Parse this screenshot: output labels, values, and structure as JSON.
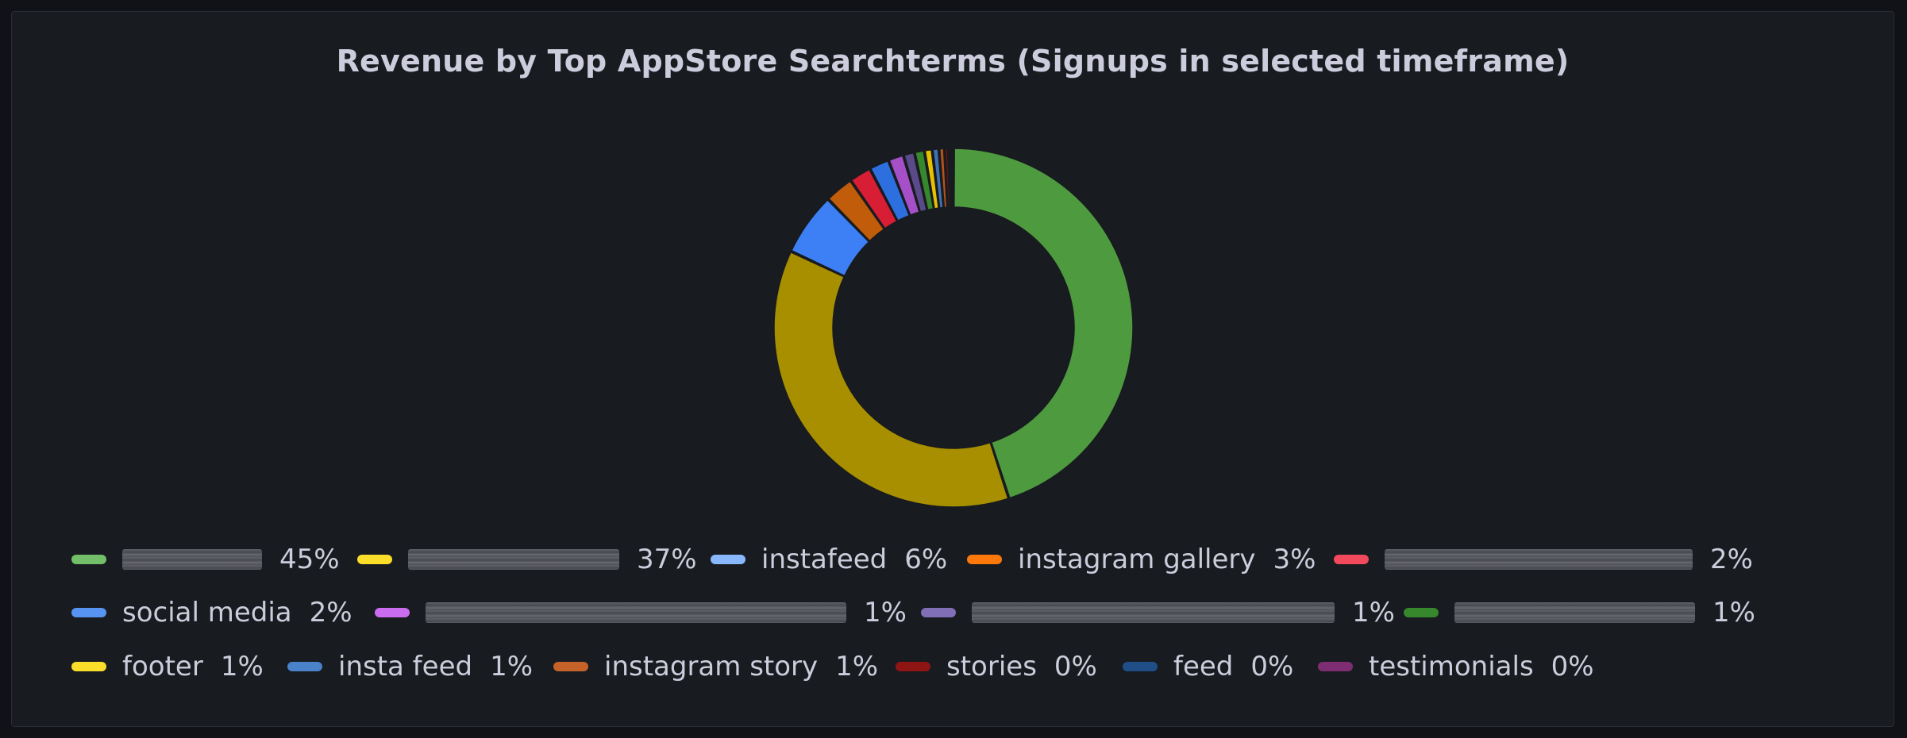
{
  "chart_data": {
    "type": "pie",
    "title": "Revenue by Top AppStore Searchterms (Signups in selected timeframe)",
    "legend_position": "bottom",
    "slices": [
      {
        "label": "",
        "redacted": true,
        "percent_label": "45%",
        "value": 45.0,
        "color": "#4e9a3f",
        "legend_color": "#73bf69"
      },
      {
        "label": "",
        "redacted": true,
        "percent_label": "37%",
        "value": 37.0,
        "color": "#a88f00",
        "legend_color": "#fade2a"
      },
      {
        "label": "instafeed",
        "redacted": false,
        "percent_label": "6%",
        "value": 5.7,
        "color": "#3d7ff5",
        "legend_color": "#8ab8ff"
      },
      {
        "label": "instagram gallery",
        "redacted": false,
        "percent_label": "3%",
        "value": 2.6,
        "color": "#c15c0a",
        "legend_color": "#ff780a"
      },
      {
        "label": "",
        "redacted": true,
        "percent_label": "2%",
        "value": 2.0,
        "color": "#d71e35",
        "legend_color": "#f2495c"
      },
      {
        "label": "social media",
        "redacted": false,
        "percent_label": "2%",
        "value": 1.8,
        "color": "#2e6fe0",
        "legend_color": "#5794f2"
      },
      {
        "label": "",
        "redacted": true,
        "percent_label": "1%",
        "value": 1.4,
        "color": "#a54fc9",
        "legend_color": "#ca6cf0"
      },
      {
        "label": "",
        "redacted": true,
        "percent_label": "1%",
        "value": 1.0,
        "color": "#5a4a8a",
        "legend_color": "#806eb7"
      },
      {
        "label": "",
        "redacted": true,
        "percent_label": "1%",
        "value": 0.9,
        "color": "#37872d",
        "legend_color": "#37872d"
      },
      {
        "label": "footer",
        "redacted": false,
        "percent_label": "1%",
        "value": 0.7,
        "color": "#e6c200",
        "legend_color": "#fade2a"
      },
      {
        "label": "insta feed",
        "redacted": false,
        "percent_label": "1%",
        "value": 0.6,
        "color": "#3f72b5",
        "legend_color": "#4a82c9"
      },
      {
        "label": "instagram story",
        "redacted": false,
        "percent_label": "1%",
        "value": 0.5,
        "color": "#b5531c",
        "legend_color": "#c4622a"
      },
      {
        "label": "stories",
        "redacted": false,
        "percent_label": "0%",
        "value": 0.35,
        "color": "#8b1010",
        "legend_color": "#8f1515"
      },
      {
        "label": "feed",
        "redacted": false,
        "percent_label": "0%",
        "value": 0.25,
        "color": "#1e4a7f",
        "legend_color": "#1f4f86"
      },
      {
        "label": "testimonials",
        "redacted": false,
        "percent_label": "0%",
        "value": 0.2,
        "color": "#7a2a6f",
        "legend_color": "#7e2d72"
      }
    ]
  }
}
